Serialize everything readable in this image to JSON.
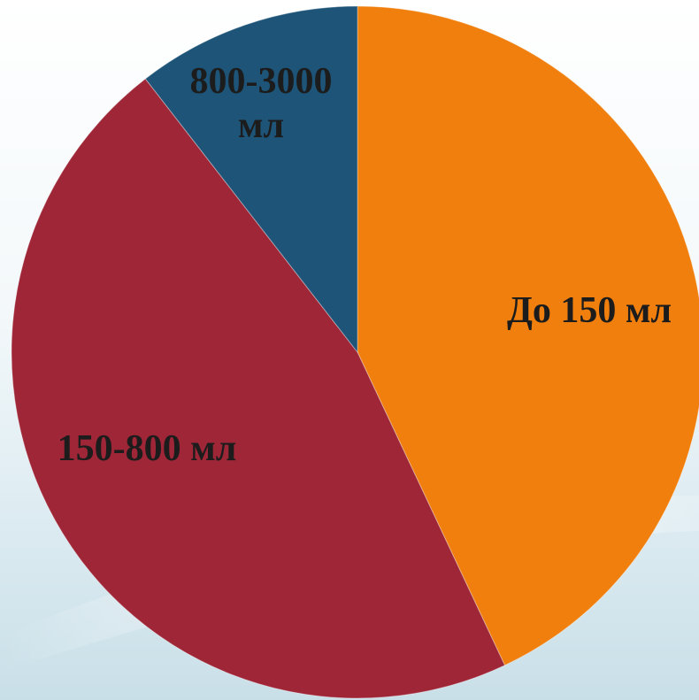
{
  "chart_data": {
    "type": "pie",
    "slices": [
      {
        "label_lines": [
          "До 150 мл"
        ],
        "value": 43,
        "color": "#f07f0e"
      },
      {
        "label_lines": [
          "150-800 мл"
        ],
        "value": 46.5,
        "color": "#9e2637"
      },
      {
        "label_lines": [
          "800-3000",
          "мл"
        ],
        "value": 10.5,
        "color": "#1d5477"
      }
    ],
    "start_angle_deg": 0,
    "direction": "clockwise",
    "legend": "none"
  }
}
